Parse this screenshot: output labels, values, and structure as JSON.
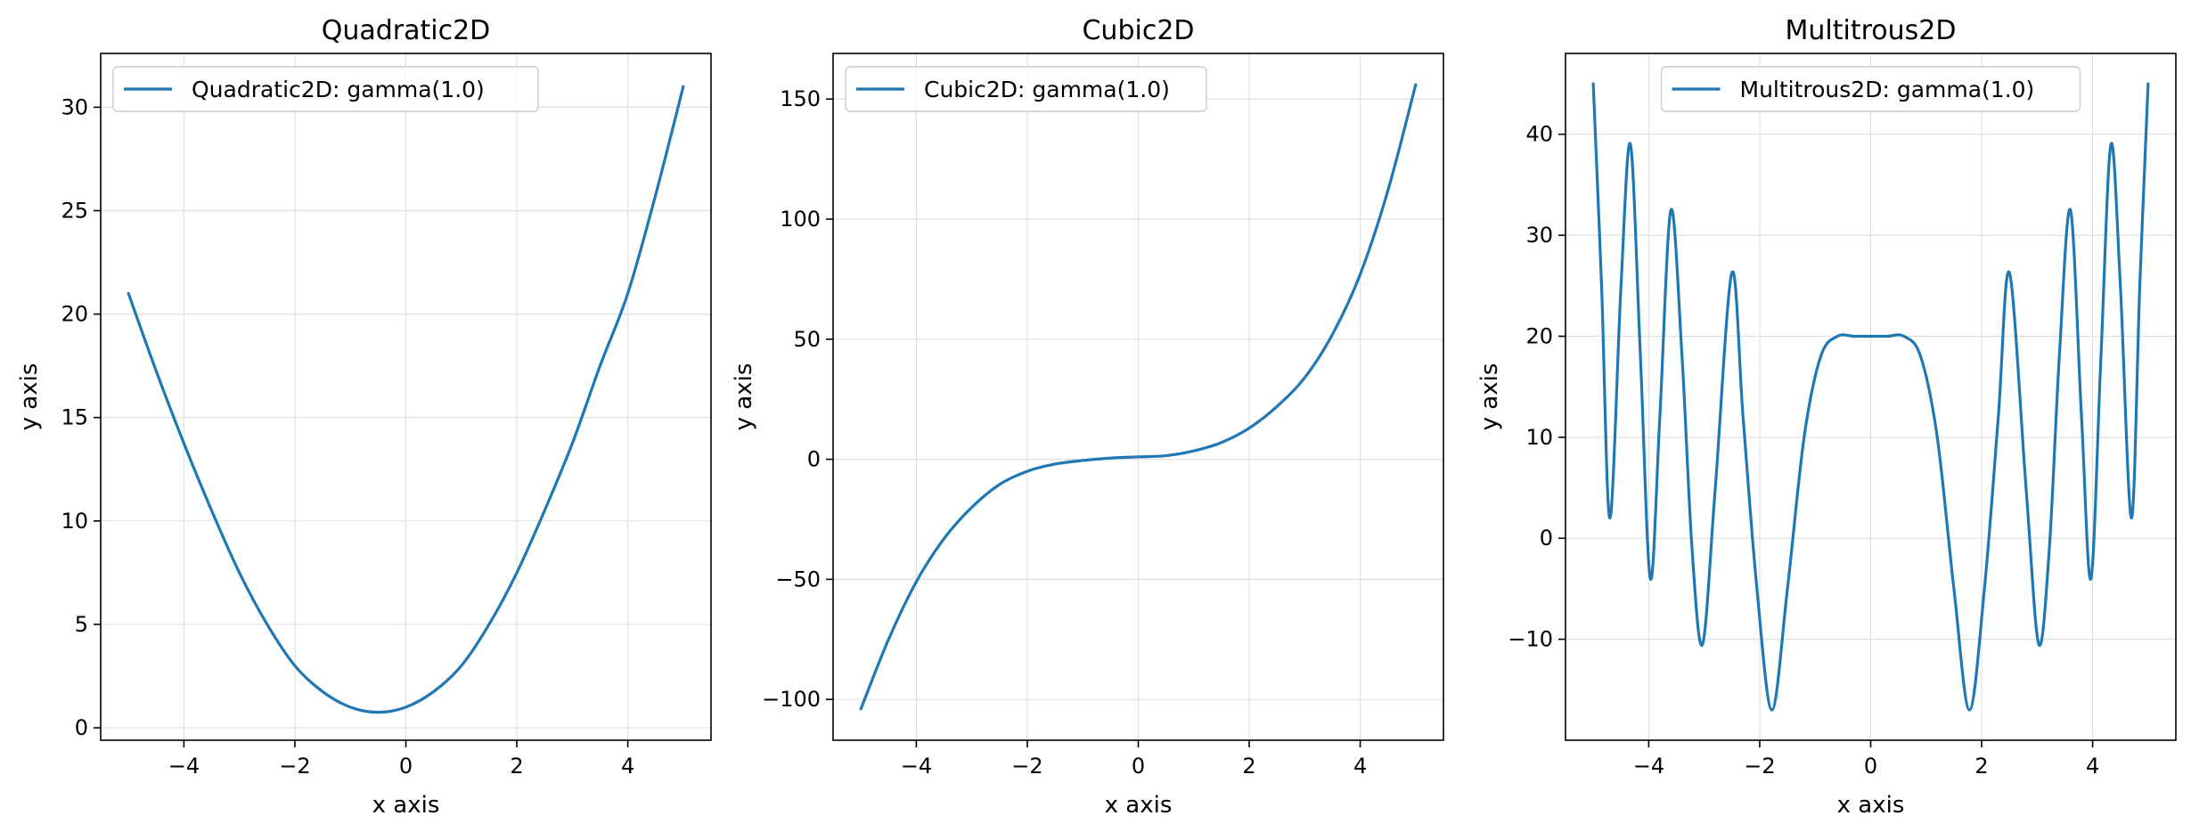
{
  "colors": {
    "line": "#1f77b4",
    "grid": "#e0e0e0",
    "frame": "#000000"
  },
  "chart_data": [
    {
      "type": "line",
      "title": "Quadratic2D",
      "xlabel": "x axis",
      "ylabel": "y axis",
      "xlim": [
        -5.5,
        5.5
      ],
      "ylim": [
        -0.6,
        32.6
      ],
      "xticks": [
        -4,
        -2,
        0,
        2,
        4
      ],
      "yticks": [
        0,
        5,
        10,
        15,
        20,
        25,
        30
      ],
      "xtick_labels": [
        "−4",
        "−2",
        "0",
        "2",
        "4"
      ],
      "ytick_labels": [
        "0",
        "5",
        "10",
        "15",
        "20",
        "25",
        "30"
      ],
      "grid": true,
      "legend": "upper-left",
      "series": [
        {
          "name": "Quadratic2D: gamma(1.0)",
          "x": [
            -5,
            -4.5,
            -4,
            -3.5,
            -3,
            -2.5,
            -2,
            -1.5,
            -1,
            -0.5,
            0,
            0.5,
            1,
            1.5,
            2,
            2.5,
            3,
            3.5,
            4,
            4.5,
            5
          ],
          "y": [
            21,
            17.25,
            13.75,
            10.5,
            7.5,
            5.0,
            3.0,
            1.75,
            1.0,
            0.75,
            1.0,
            1.75,
            3.0,
            5.0,
            7.5,
            10.5,
            13.75,
            17.5,
            21.0,
            25.75,
            31.0
          ]
        }
      ]
    },
    {
      "type": "line",
      "title": "Cubic2D",
      "xlabel": "x axis",
      "ylabel": "y axis",
      "xlim": [
        -5.5,
        5.5
      ],
      "ylim": [
        -117,
        169
      ],
      "xticks": [
        -4,
        -2,
        0,
        2,
        4
      ],
      "yticks": [
        -100,
        -50,
        0,
        50,
        100,
        150
      ],
      "xtick_labels": [
        "−4",
        "−2",
        "0",
        "2",
        "4"
      ],
      "ytick_labels": [
        "−100",
        "−50",
        "0",
        "50",
        "100",
        "150"
      ],
      "grid": true,
      "legend": "upper-left",
      "series": [
        {
          "name": "Cubic2D: gamma(1.0)",
          "x": [
            -5,
            -4.5,
            -4,
            -3.5,
            -3,
            -2.5,
            -2,
            -1.5,
            -1,
            -0.5,
            0,
            0.5,
            1,
            1.5,
            2,
            2.5,
            3,
            3.5,
            4,
            4.5,
            5
          ],
          "y": [
            -104,
            -75,
            -51,
            -33,
            -20,
            -10.5,
            -5,
            -2,
            -0.5,
            0.5,
            1,
            1.5,
            3.5,
            7,
            13,
            22,
            34,
            52,
            77,
            112,
            156
          ]
        }
      ]
    },
    {
      "type": "line",
      "title": "Multitrous2D",
      "xlabel": "x axis",
      "ylabel": "y axis",
      "xlim": [
        -5.5,
        5.5
      ],
      "ylim": [
        -20,
        48
      ],
      "xticks": [
        -4,
        -2,
        0,
        2,
        4
      ],
      "yticks": [
        -10,
        0,
        10,
        20,
        30,
        40
      ],
      "xtick_labels": [
        "−4",
        "−2",
        "0",
        "2",
        "4"
      ],
      "ytick_labels": [
        "−10",
        "0",
        "10",
        "20",
        "30",
        "40"
      ],
      "grid": true,
      "legend": "upper-center",
      "series": [
        {
          "name": "Multitrous2D: gamma(1.0)",
          "x": [
            -5.0,
            -4.85,
            -4.7,
            -4.5,
            -4.33,
            -4.15,
            -3.97,
            -3.8,
            -3.6,
            -3.4,
            -3.22,
            -3.03,
            -2.8,
            -2.5,
            -2.3,
            -2.05,
            -1.78,
            -1.5,
            -1.2,
            -0.9,
            -0.6,
            -0.3,
            0.0,
            0.3,
            0.6,
            0.9,
            1.2,
            1.5,
            1.78,
            2.05,
            2.3,
            2.5,
            2.8,
            3.03,
            3.22,
            3.4,
            3.6,
            3.8,
            3.97,
            4.15,
            4.33,
            4.5,
            4.7,
            4.85,
            5.0
          ],
          "y": [
            45,
            25,
            2,
            25,
            39,
            18,
            -4,
            12,
            32.5,
            18,
            -1,
            -10.5,
            5,
            26.3,
            12,
            -5,
            -17,
            -5,
            10,
            18,
            20,
            20,
            20,
            20,
            20,
            18,
            10,
            -5,
            -17,
            -5,
            12,
            26.3,
            5,
            -10.5,
            -1,
            18,
            32.5,
            12,
            -4,
            18,
            39,
            25,
            2,
            25,
            45
          ]
        }
      ]
    }
  ]
}
